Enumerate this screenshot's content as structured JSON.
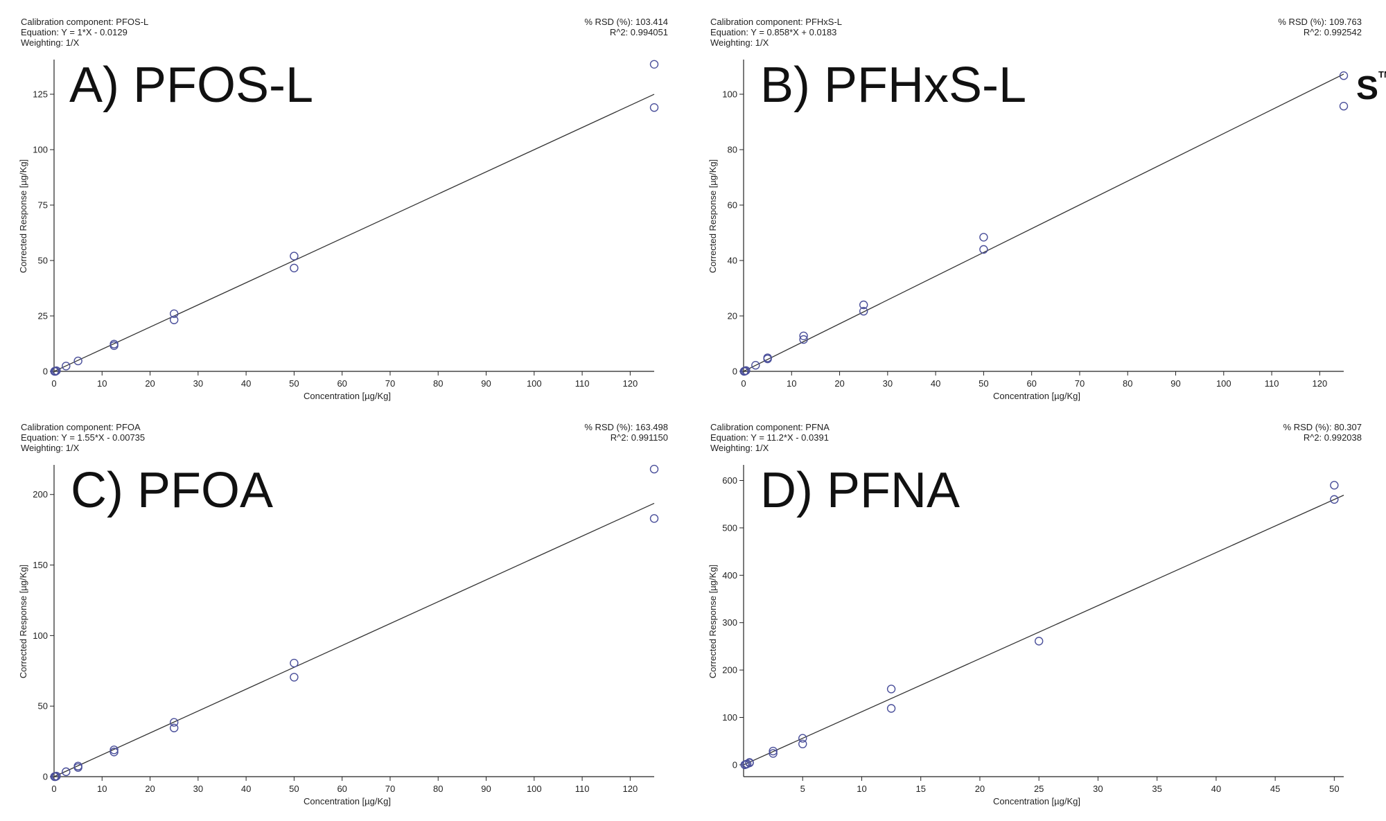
{
  "panels": [
    {
      "info": {
        "component": "Calibration component: PFOS-L",
        "equation": "Equation: Y = 1*X - 0.0129",
        "weighting": "Weighting: 1/X",
        "rsd": "% RSD (%): 103.414",
        "r2": "R^2: 0.994051"
      },
      "label": "A) PFOS-L"
    },
    {
      "info": {
        "component": "Calibration component: PFHxS-L",
        "equation": "Equation: Y = 0.858*X + 0.0183",
        "weighting": "Weighting: 1/X",
        "rsd": "% RSD (%): 109.763",
        "r2": "R^2: 0.992542"
      },
      "label": "B) PFHxS-L"
    },
    {
      "info": {
        "component": "Calibration component: PFOA",
        "equation": "Equation: Y = 1.55*X - 0.00735",
        "weighting": "Weighting: 1/X",
        "rsd": "% RSD (%): 163.498",
        "r2": "R^2: 0.991150"
      },
      "label": "C) PFOA"
    },
    {
      "info": {
        "component": "Calibration component: PFNA",
        "equation": "Equation: Y = 11.2*X - 0.0391",
        "weighting": "Weighting: 1/X",
        "rsd": "% RSD (%): 80.307",
        "r2": "R^2: 0.992038"
      },
      "label": "D) PFNA"
    }
  ],
  "colors": {
    "points": "#4a4f9a",
    "line": "#333333",
    "axis": "#222222"
  },
  "tm_glyph": "S",
  "tm_mark": "TM",
  "chart_data": [
    {
      "type": "scatter",
      "xlabel": "Concentration [µg/Kg]",
      "ylabel": "Corrected Response [µg/Kg]",
      "xlim": [
        0,
        125
      ],
      "ylim": [
        0,
        140
      ],
      "xticks": [
        0,
        10,
        20,
        30,
        40,
        50,
        60,
        70,
        80,
        90,
        100,
        110,
        120
      ],
      "yticks": [
        0,
        25,
        50,
        75,
        100,
        125
      ],
      "points": [
        [
          0.1,
          0
        ],
        [
          0.3,
          0
        ],
        [
          0.5,
          0.3
        ],
        [
          2.5,
          2.4
        ],
        [
          5,
          4.7
        ],
        [
          12.5,
          11.6
        ],
        [
          12.5,
          12.3
        ],
        [
          25,
          23.2
        ],
        [
          25,
          26
        ],
        [
          50,
          46.6
        ],
        [
          50,
          52
        ],
        [
          125,
          119
        ],
        [
          125,
          138.5
        ]
      ],
      "fit": {
        "slope": 1,
        "intercept": -0.0129
      }
    },
    {
      "type": "scatter",
      "xlabel": "Concentration [µg/Kg]",
      "ylabel": "Corrected Response [µg/Kg]",
      "xlim": [
        0,
        125
      ],
      "ylim": [
        0,
        112
      ],
      "xticks": [
        0,
        10,
        20,
        30,
        40,
        50,
        60,
        70,
        80,
        90,
        100,
        110,
        120
      ],
      "yticks": [
        0,
        20,
        40,
        60,
        80,
        100
      ],
      "points": [
        [
          0.1,
          0
        ],
        [
          0.3,
          0.1
        ],
        [
          0.5,
          0.3
        ],
        [
          2.5,
          2.2
        ],
        [
          5,
          4.5
        ],
        [
          5,
          4.9
        ],
        [
          12.5,
          11.5
        ],
        [
          12.5,
          12.8
        ],
        [
          25,
          21.7
        ],
        [
          25,
          24
        ],
        [
          50,
          44
        ],
        [
          50,
          48.4
        ],
        [
          125,
          95.7
        ],
        [
          125,
          106.7
        ]
      ],
      "fit": {
        "slope": 0.858,
        "intercept": 0.0183
      }
    },
    {
      "type": "scatter",
      "xlabel": "Concentration [µg/Kg]",
      "ylabel": "Corrected Response [µg/Kg]",
      "xlim": [
        0,
        125
      ],
      "ylim": [
        0,
        220
      ],
      "xticks": [
        0,
        10,
        20,
        30,
        40,
        50,
        60,
        70,
        80,
        90,
        100,
        110,
        120
      ],
      "yticks": [
        0,
        50,
        100,
        150,
        200
      ],
      "points": [
        [
          0.1,
          0
        ],
        [
          0.3,
          0
        ],
        [
          0.5,
          0.4
        ],
        [
          2.5,
          3.5
        ],
        [
          5,
          6.5
        ],
        [
          5,
          7.5
        ],
        [
          12.5,
          17.5
        ],
        [
          12.5,
          19
        ],
        [
          25,
          34.5
        ],
        [
          25,
          38.5
        ],
        [
          50,
          70.5
        ],
        [
          50,
          80.5
        ],
        [
          125,
          183
        ],
        [
          125,
          218
        ]
      ],
      "fit": {
        "slope": 1.55,
        "intercept": -0.00735
      }
    },
    {
      "type": "scatter",
      "xlabel": "Concentration [µg/Kg]",
      "ylabel": "Corrected Response [µg/Kg]",
      "xlim": [
        0,
        50.8
      ],
      "ylim": [
        -25,
        630
      ],
      "xticks": [
        5,
        10,
        15,
        20,
        25,
        30,
        35,
        40,
        45,
        50
      ],
      "yticks": [
        0,
        100,
        200,
        300,
        400,
        500,
        600
      ],
      "points": [
        [
          0.1,
          0
        ],
        [
          0.2,
          1
        ],
        [
          0.3,
          2
        ],
        [
          0.5,
          4
        ],
        [
          0.5,
          5
        ],
        [
          2.5,
          24
        ],
        [
          2.5,
          29
        ],
        [
          5,
          44
        ],
        [
          5,
          56
        ],
        [
          12.5,
          119
        ],
        [
          12.5,
          160
        ],
        [
          25,
          261
        ],
        [
          50,
          560
        ],
        [
          50,
          590
        ]
      ],
      "fit": {
        "slope": 11.2,
        "intercept": -0.0391
      }
    }
  ]
}
